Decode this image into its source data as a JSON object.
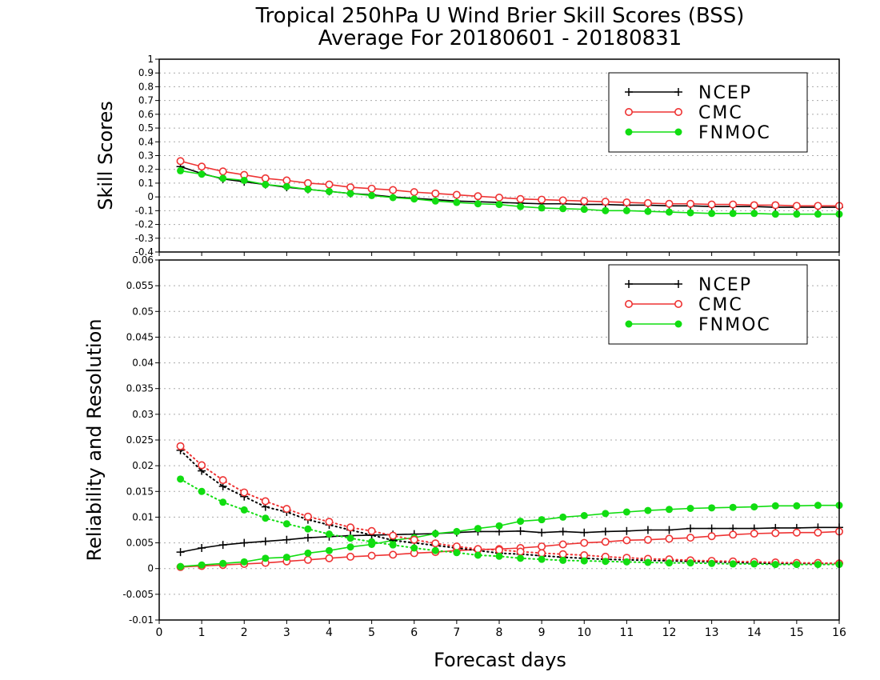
{
  "title_line1": "Tropical 250hPa U Wind Brier Skill Scores (BSS)",
  "title_line2": "Average For 20180601 - 20180831",
  "xlabel": "Forecast days",
  "colors": {
    "NCEP": "#000000",
    "CMC": "#ee3333",
    "FNMOC": "#11dd11",
    "grid": "#aaaaaa"
  },
  "chart_data": [
    {
      "type": "line",
      "panel": "top",
      "ylabel": "Skill Scores",
      "xlim": [
        0,
        16
      ],
      "ylim": [
        -0.4,
        1
      ],
      "yticks": [
        -0.4,
        -0.3,
        -0.2,
        -0.1,
        0,
        0.1,
        0.2,
        0.3,
        0.4,
        0.5,
        0.6,
        0.7,
        0.8,
        0.9,
        1
      ],
      "ytick_labels": [
        "-0.4",
        "-0.3",
        "-0.2",
        "-0.1",
        "0",
        "0.1",
        "0.2",
        "0.3",
        "0.4",
        "0.5",
        "0.6",
        "0.7",
        "0.8",
        "0.9",
        "1"
      ],
      "xticks": [
        0,
        1,
        2,
        3,
        4,
        5,
        6,
        7,
        8,
        9,
        10,
        11,
        12,
        13,
        14,
        15,
        16
      ],
      "xtick_labels": [
        "0",
        "1",
        "2",
        "3",
        "4",
        "5",
        "6",
        "7",
        "8",
        "9",
        "10",
        "11",
        "12",
        "13",
        "14",
        "15",
        "16"
      ],
      "grid": true,
      "legend": {
        "position": "top-right",
        "entries": [
          "NCEP",
          "CMC",
          "FNMOC"
        ]
      },
      "x": [
        0.5,
        1,
        1.5,
        2,
        2.5,
        3,
        3.5,
        4,
        4.5,
        5,
        5.5,
        6,
        6.5,
        7,
        7.5,
        8,
        8.5,
        9,
        9.5,
        10,
        10.5,
        11,
        11.5,
        12,
        12.5,
        13,
        13.5,
        14,
        14.5,
        15,
        15.5,
        16
      ],
      "series": [
        {
          "name": "NCEP",
          "marker": "plus",
          "style": "solid",
          "values": [
            0.22,
            0.17,
            0.13,
            0.11,
            0.09,
            0.07,
            0.055,
            0.04,
            0.025,
            0.015,
            0.0,
            -0.01,
            -0.02,
            -0.03,
            -0.035,
            -0.04,
            -0.045,
            -0.05,
            -0.05,
            -0.055,
            -0.055,
            -0.06,
            -0.06,
            -0.065,
            -0.065,
            -0.07,
            -0.07,
            -0.07,
            -0.075,
            -0.075,
            -0.075,
            -0.075
          ]
        },
        {
          "name": "CMC",
          "marker": "open-circle",
          "style": "solid",
          "values": [
            0.26,
            0.22,
            0.185,
            0.16,
            0.135,
            0.12,
            0.1,
            0.09,
            0.07,
            0.06,
            0.05,
            0.035,
            0.025,
            0.015,
            0.005,
            -0.005,
            -0.015,
            -0.02,
            -0.025,
            -0.03,
            -0.035,
            -0.04,
            -0.045,
            -0.05,
            -0.05,
            -0.055,
            -0.055,
            -0.06,
            -0.06,
            -0.065,
            -0.065,
            -0.065
          ]
        },
        {
          "name": "FNMOC",
          "marker": "filled-circle",
          "style": "solid",
          "values": [
            0.19,
            0.165,
            0.135,
            0.12,
            0.09,
            0.075,
            0.055,
            0.04,
            0.025,
            0.01,
            -0.005,
            -0.015,
            -0.03,
            -0.04,
            -0.05,
            -0.055,
            -0.07,
            -0.08,
            -0.085,
            -0.09,
            -0.1,
            -0.1,
            -0.105,
            -0.11,
            -0.115,
            -0.12,
            -0.12,
            -0.12,
            -0.125,
            -0.125,
            -0.125,
            -0.125
          ]
        }
      ]
    },
    {
      "type": "line",
      "panel": "bottom",
      "ylabel": "Reliability and Resolution",
      "xlim": [
        0,
        16
      ],
      "ylim": [
        -0.01,
        0.06
      ],
      "yticks": [
        -0.01,
        -0.005,
        0,
        0.005,
        0.01,
        0.015,
        0.02,
        0.025,
        0.03,
        0.035,
        0.04,
        0.045,
        0.05,
        0.055,
        0.06
      ],
      "ytick_labels": [
        "-0.01",
        "-0.005",
        "0",
        "0.005",
        "0.01",
        "0.015",
        "0.02",
        "0.025",
        "0.03",
        "0.035",
        "0.04",
        "0.045",
        "0.05",
        "0.055",
        "0.06"
      ],
      "xticks": [
        0,
        1,
        2,
        3,
        4,
        5,
        6,
        7,
        8,
        9,
        10,
        11,
        12,
        13,
        14,
        15,
        16
      ],
      "xtick_labels": [
        "0",
        "1",
        "2",
        "3",
        "4",
        "5",
        "6",
        "7",
        "8",
        "9",
        "10",
        "11",
        "12",
        "13",
        "14",
        "15",
        "16"
      ],
      "grid": true,
      "legend": {
        "position": "top-right",
        "entries": [
          "NCEP",
          "CMC",
          "FNMOC"
        ]
      },
      "x": [
        0.5,
        1,
        1.5,
        2,
        2.5,
        3,
        3.5,
        4,
        4.5,
        5,
        5.5,
        6,
        6.5,
        7,
        7.5,
        8,
        8.5,
        9,
        9.5,
        10,
        10.5,
        11,
        11.5,
        12,
        12.5,
        13,
        13.5,
        14,
        14.5,
        15,
        15.5,
        16
      ],
      "series": [
        {
          "name": "NCEP",
          "role": "resolution",
          "marker": "plus",
          "style": "solid",
          "values": [
            0.0032,
            0.004,
            0.0046,
            0.005,
            0.0053,
            0.0056,
            0.006,
            0.0062,
            0.0064,
            0.0065,
            0.0066,
            0.0067,
            0.0068,
            0.007,
            0.0072,
            0.0072,
            0.0073,
            0.007,
            0.0072,
            0.007,
            0.0072,
            0.0073,
            0.0075,
            0.0075,
            0.0078,
            0.0078,
            0.0078,
            0.0078,
            0.0079,
            0.0079,
            0.008,
            0.008
          ]
        },
        {
          "name": "CMC",
          "role": "resolution",
          "marker": "open-circle",
          "style": "solid",
          "values": [
            0.0003,
            0.0005,
            0.0007,
            0.0009,
            0.0011,
            0.0014,
            0.0017,
            0.002,
            0.0023,
            0.0025,
            0.0027,
            0.003,
            0.0032,
            0.0035,
            0.0037,
            0.0038,
            0.004,
            0.0043,
            0.0047,
            0.005,
            0.0052,
            0.0055,
            0.0056,
            0.0058,
            0.006,
            0.0063,
            0.0066,
            0.0068,
            0.0069,
            0.007,
            0.007,
            0.0072
          ]
        },
        {
          "name": "FNMOC",
          "role": "resolution",
          "marker": "filled-circle",
          "style": "solid",
          "values": [
            0.0004,
            0.0007,
            0.001,
            0.0013,
            0.002,
            0.0022,
            0.003,
            0.0035,
            0.0042,
            0.0047,
            0.0055,
            0.006,
            0.0068,
            0.0072,
            0.0078,
            0.0083,
            0.0092,
            0.0095,
            0.01,
            0.0103,
            0.0107,
            0.011,
            0.0113,
            0.0115,
            0.0117,
            0.0118,
            0.0119,
            0.012,
            0.0122,
            0.0122,
            0.0123,
            0.0123
          ]
        },
        {
          "name": "NCEP",
          "role": "reliability",
          "marker": "plus",
          "style": "dotted",
          "values": [
            0.023,
            0.019,
            0.016,
            0.014,
            0.012,
            0.011,
            0.0095,
            0.0085,
            0.0075,
            0.0065,
            0.0055,
            0.005,
            0.0045,
            0.004,
            0.0035,
            0.003,
            0.0028,
            0.0025,
            0.0022,
            0.002,
            0.0018,
            0.0017,
            0.0016,
            0.0015,
            0.0014,
            0.0013,
            0.0012,
            0.0011,
            0.001,
            0.001,
            0.001,
            0.001
          ]
        },
        {
          "name": "CMC",
          "role": "reliability",
          "marker": "open-circle",
          "style": "dotted",
          "values": [
            0.0238,
            0.0201,
            0.0172,
            0.0148,
            0.0131,
            0.0116,
            0.0101,
            0.0091,
            0.008,
            0.0073,
            0.0064,
            0.0056,
            0.0049,
            0.0043,
            0.0038,
            0.0036,
            0.0033,
            0.003,
            0.0028,
            0.0026,
            0.0023,
            0.0021,
            0.0019,
            0.0018,
            0.0016,
            0.0015,
            0.0014,
            0.0013,
            0.0012,
            0.0011,
            0.0011,
            0.001
          ]
        },
        {
          "name": "FNMOC",
          "role": "reliability",
          "marker": "filled-circle",
          "style": "dotted",
          "values": [
            0.0174,
            0.015,
            0.0129,
            0.0114,
            0.0098,
            0.0087,
            0.0077,
            0.0067,
            0.0059,
            0.0052,
            0.0046,
            0.004,
            0.0035,
            0.0031,
            0.0026,
            0.0024,
            0.002,
            0.0018,
            0.0016,
            0.0015,
            0.0014,
            0.0013,
            0.0012,
            0.0011,
            0.0011,
            0.001,
            0.0009,
            0.0009,
            0.0008,
            0.0008,
            0.0008,
            0.0008
          ]
        }
      ]
    }
  ]
}
